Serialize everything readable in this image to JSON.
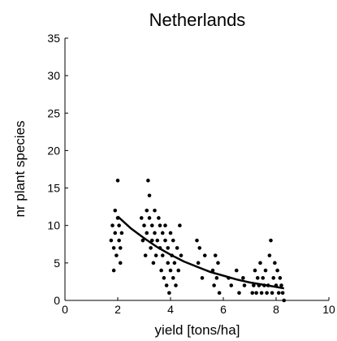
{
  "chart_data": {
    "type": "scatter",
    "title": "Netherlands",
    "xlabel": "yield [tons/ha]",
    "ylabel": "nr plant species",
    "xlim": [
      0,
      10
    ],
    "ylim": [
      0,
      35
    ],
    "xticks": [
      "0",
      "2",
      "4",
      "6",
      "8",
      "10"
    ],
    "yticks": [
      "0",
      "5",
      "10",
      "15",
      "20",
      "25",
      "30",
      "35"
    ],
    "grid": false,
    "legend": "none",
    "marker_color": "#000000",
    "series": [
      {
        "kind": "points",
        "x": [
          1.75,
          1.8,
          1.85,
          1.85,
          1.9,
          1.9,
          1.95,
          2.0,
          2.0,
          2.05,
          2.05,
          2.1,
          2.1,
          2.15,
          2.9,
          2.95,
          3.0,
          3.05,
          3.1,
          3.1,
          3.15,
          3.2,
          3.2,
          3.25,
          3.3,
          3.3,
          3.35,
          3.4,
          3.4,
          3.45,
          3.5,
          3.55,
          3.6,
          3.6,
          3.65,
          3.7,
          3.7,
          3.75,
          3.8,
          3.8,
          3.85,
          3.9,
          3.9,
          3.95,
          4.0,
          4.0,
          4.05,
          4.1,
          4.1,
          4.15,
          4.2,
          4.25,
          4.3,
          4.35,
          4.4,
          5.0,
          5.05,
          5.1,
          5.2,
          5.3,
          5.6,
          5.65,
          5.7,
          5.75,
          5.8,
          5.85,
          6.2,
          6.3,
          6.5,
          6.6,
          6.75,
          6.8,
          7.1,
          7.15,
          7.2,
          7.25,
          7.3,
          7.35,
          7.4,
          7.45,
          7.5,
          7.55,
          7.6,
          7.65,
          7.7,
          7.75,
          7.8,
          7.85,
          7.9,
          7.95,
          8.0,
          8.05,
          8.1,
          8.15,
          8.2,
          8.25,
          8.3
        ],
        "y": [
          8,
          10,
          4,
          7,
          12,
          9,
          6,
          16,
          11,
          8,
          10,
          5,
          7,
          9,
          11,
          8,
          10,
          6,
          12,
          9,
          16,
          14,
          11,
          7,
          8,
          10,
          5,
          9,
          12,
          6,
          8,
          11,
          10,
          7,
          4,
          9,
          6,
          3,
          8,
          10,
          2,
          5,
          7,
          1,
          9,
          4,
          6,
          3,
          8,
          5,
          2,
          7,
          4,
          10,
          6,
          8,
          5,
          7,
          3,
          6,
          4,
          2,
          6,
          3,
          5,
          1,
          3,
          2,
          4,
          1,
          3,
          2,
          1,
          2,
          4,
          1,
          3,
          2,
          5,
          1,
          3,
          2,
          4,
          1,
          2,
          6,
          8,
          1,
          3,
          5,
          2,
          4,
          1,
          3,
          2,
          1,
          0
        ]
      },
      {
        "kind": "fit-curve",
        "x": [
          2.0,
          2.5,
          3.0,
          3.5,
          4.0,
          4.5,
          5.0,
          5.5,
          6.0,
          6.5,
          7.0,
          7.5,
          8.0,
          8.3
        ],
        "y": [
          11.2,
          9.6,
          8.3,
          7.1,
          6.1,
          5.2,
          4.5,
          3.8,
          3.3,
          2.8,
          2.4,
          2.1,
          1.8,
          1.6
        ]
      }
    ]
  }
}
